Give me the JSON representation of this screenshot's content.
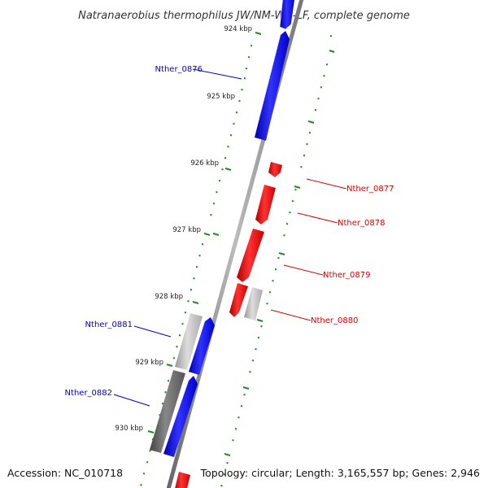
{
  "title": "Natranaerobius thermophilus JW/NM-WN-LF, complete genome",
  "footer": {
    "accession": "Accession: NC_010718",
    "stats": "Topology: circular; Length: 3,165,557 bp; Genes: 2,946"
  },
  "ticks": [
    "924 kbp",
    "925 kbp",
    "926 kbp",
    "927 kbp",
    "928 kbp",
    "929 kbp",
    "930 kbp"
  ],
  "genes": [
    {
      "id": "Nther_0876",
      "strand": "+",
      "color": "#0000ee"
    },
    {
      "id": "Nther_0877",
      "strand": "-",
      "color": "#ee0000"
    },
    {
      "id": "Nther_0878",
      "strand": "-",
      "color": "#ee0000"
    },
    {
      "id": "Nther_0879",
      "strand": "-",
      "color": "#ee0000"
    },
    {
      "id": "Nther_0880",
      "strand": "-",
      "color": "#ee0000"
    },
    {
      "id": "Nther_0881",
      "strand": "+",
      "color": "#0000bb"
    },
    {
      "id": "Nther_0882",
      "strand": "+",
      "color": "#0000bb"
    }
  ],
  "colors": {
    "forward": "#0000ff",
    "reverse": "#ff0000",
    "ruler": "#228822",
    "backbone": "#888888",
    "gray_feature": "#aaaaaa",
    "dark_feature": "#555555"
  }
}
